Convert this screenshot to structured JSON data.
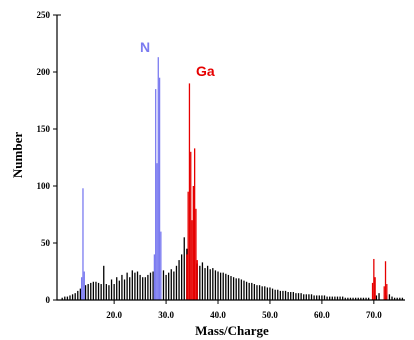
{
  "chart_data": {
    "type": "bar",
    "xlabel": "Mass/Charge",
    "ylabel": "Number",
    "xlim": [
      9,
      76
    ],
    "ylim": [
      0,
      250
    ],
    "x_ticks": [
      {
        "value": 20,
        "label": "20.0"
      },
      {
        "value": 30,
        "label": "30.0"
      },
      {
        "value": 40,
        "label": "40.0"
      },
      {
        "value": 50,
        "label": "50.0"
      },
      {
        "value": 60,
        "label": "60.0"
      },
      {
        "value": 70,
        "label": "70.0"
      }
    ],
    "y_ticks": [
      {
        "value": 0,
        "label": "0"
      },
      {
        "value": 50,
        "label": "50"
      },
      {
        "value": 100,
        "label": "100"
      },
      {
        "value": 150,
        "label": "150"
      },
      {
        "value": 200,
        "label": "200"
      },
      {
        "value": 250,
        "label": "250"
      }
    ],
    "grid": false,
    "series": [
      {
        "name": "",
        "color": "#000000",
        "bin_width": 0.25,
        "x": [
          10.0,
          10.5,
          11.0,
          11.5,
          12.0,
          12.5,
          13.0,
          13.5,
          14.5,
          15.0,
          15.5,
          16.0,
          16.5,
          17.0,
          17.5,
          18.0,
          18.5,
          19.0,
          19.5,
          20.0,
          20.5,
          21.0,
          21.5,
          22.0,
          22.5,
          23.0,
          23.5,
          24.0,
          24.5,
          25.0,
          25.5,
          26.0,
          26.5,
          27.0,
          27.5,
          29.5,
          30.0,
          30.5,
          31.0,
          31.5,
          32.0,
          32.5,
          33.0,
          33.5,
          34.0,
          36.0,
          36.5,
          37.0,
          37.5,
          38.0,
          38.5,
          39.0,
          39.5,
          40.0,
          40.5,
          41.0,
          41.5,
          42.0,
          42.5,
          43.0,
          43.5,
          44.0,
          44.5,
          45.0,
          45.5,
          46.0,
          46.5,
          47.0,
          47.5,
          48.0,
          48.5,
          49.0,
          49.5,
          50.0,
          50.5,
          51.0,
          51.5,
          52.0,
          52.5,
          53.0,
          53.5,
          54.0,
          54.5,
          55.0,
          55.5,
          56.0,
          56.5,
          57.0,
          57.5,
          58.0,
          58.5,
          59.0,
          59.5,
          60.0,
          60.5,
          61.0,
          61.5,
          62.0,
          62.5,
          63.0,
          63.5,
          64.0,
          64.5,
          65.0,
          65.5,
          66.0,
          66.5,
          67.0,
          67.5,
          68.0,
          68.5,
          69.0,
          70.5,
          71.0,
          72.5,
          73.0,
          73.5,
          74.0,
          74.5,
          75.0,
          75.5
        ],
        "values": [
          2,
          3,
          3,
          4,
          5,
          6,
          8,
          10,
          13,
          14,
          15,
          16,
          16,
          15,
          14,
          30,
          14,
          13,
          18,
          14,
          20,
          17,
          22,
          18,
          24,
          20,
          26,
          24,
          25,
          22,
          20,
          20,
          22,
          24,
          25,
          26,
          22,
          24,
          27,
          25,
          30,
          35,
          40,
          55,
          45,
          32,
          30,
          33,
          28,
          30,
          27,
          28,
          26,
          25,
          24,
          24,
          23,
          22,
          21,
          20,
          19,
          19,
          18,
          17,
          16,
          15,
          15,
          14,
          13,
          13,
          12,
          12,
          11,
          11,
          10,
          9,
          9,
          8,
          8,
          8,
          7,
          7,
          7,
          6,
          6,
          6,
          5,
          5,
          5,
          5,
          4,
          4,
          4,
          4,
          4,
          3,
          3,
          3,
          3,
          3,
          3,
          3,
          2,
          2,
          2,
          2,
          2,
          2,
          2,
          2,
          2,
          2,
          4,
          6,
          4,
          5,
          3,
          2,
          2,
          2,
          2
        ]
      },
      {
        "name": "N",
        "color": "#7b7bf0",
        "bin_width": 0.25,
        "x": [
          13.75,
          14.0,
          14.25,
          27.75,
          28.0,
          28.25,
          28.5,
          28.75,
          29.0
        ],
        "values": [
          20,
          98,
          25,
          40,
          185,
          120,
          213,
          195,
          60
        ]
      },
      {
        "name": "Ga",
        "color": "#e60000",
        "bin_width": 0.25,
        "x": [
          34.0,
          34.25,
          34.5,
          34.75,
          35.0,
          35.25,
          35.5,
          35.75,
          36.0,
          69.75,
          70.0,
          70.25,
          72.0,
          72.25,
          72.5
        ],
        "values": [
          40,
          95,
          190,
          130,
          70,
          100,
          133,
          80,
          35,
          15,
          36,
          20,
          12,
          34,
          14
        ]
      }
    ]
  }
}
